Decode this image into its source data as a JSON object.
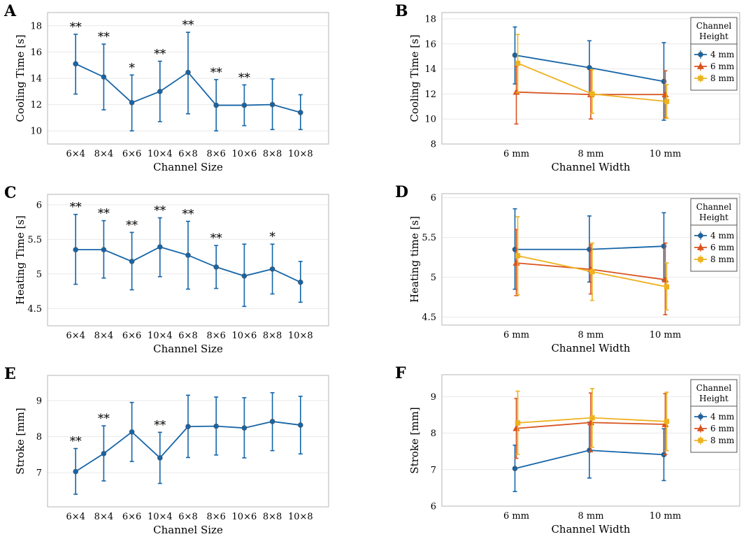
{
  "colors": {
    "blue": "#1565a8",
    "orange": "#d9531e",
    "yellow": "#eeb21f"
  },
  "chart_data": [
    {
      "panel": "A",
      "type": "line",
      "categories": [
        "6×4",
        "8×4",
        "6×6",
        "10×4",
        "6×8",
        "8×6",
        "10×6",
        "8×8",
        "10×8"
      ],
      "series": [
        {
          "name": "Cooling Time",
          "color": "#1565a8",
          "values": [
            15.1,
            14.1,
            12.15,
            13.0,
            14.45,
            11.95,
            11.95,
            12.0,
            11.4
          ],
          "lower": [
            12.8,
            11.6,
            10.0,
            10.7,
            11.3,
            10.0,
            10.4,
            10.1,
            10.1
          ],
          "upper": [
            17.35,
            16.6,
            14.25,
            15.3,
            17.5,
            13.9,
            13.5,
            13.95,
            12.75
          ]
        }
      ],
      "significance": [
        "**",
        "**",
        "*",
        "**",
        "**",
        "**",
        "**",
        "",
        ""
      ],
      "ylim": [
        9,
        19
      ],
      "yticks": [
        10,
        12,
        14,
        16,
        18
      ],
      "ytick_labels": [
        "10",
        "12",
        "14",
        "16",
        "18"
      ],
      "xlabel": "Channel Size",
      "ylabel": "Cooling Time [s]"
    },
    {
      "panel": "B",
      "type": "line",
      "categories": [
        "6 mm",
        "8 mm",
        "10 mm"
      ],
      "series": [
        {
          "name": "4 mm",
          "color": "#1565a8",
          "marker": "circle",
          "values": [
            15.1,
            14.1,
            13.0
          ],
          "lower": [
            12.8,
            11.95,
            9.9
          ],
          "upper": [
            17.35,
            16.25,
            16.1
          ]
        },
        {
          "name": "6 mm",
          "color": "#d9531e",
          "marker": "triangle",
          "values": [
            12.15,
            11.95,
            11.95
          ],
          "lower": [
            9.6,
            10.0,
            10.1
          ],
          "upper": [
            14.2,
            13.9,
            13.85
          ]
        },
        {
          "name": "8 mm",
          "color": "#eeb21f",
          "marker": "square",
          "values": [
            14.45,
            12.0,
            11.4
          ],
          "lower": [
            12.1,
            10.45,
            10.05
          ],
          "upper": [
            16.75,
            13.95,
            12.75
          ]
        }
      ],
      "ylim": [
        8,
        18.5
      ],
      "yticks": [
        8,
        10,
        12,
        14,
        16,
        18
      ],
      "ytick_labels": [
        "8",
        "10",
        "12",
        "14",
        "16",
        "18"
      ],
      "xlabel": "Channel Width",
      "ylabel": "Cooling Time [s]",
      "legend_title": [
        "Channel",
        "Height"
      ],
      "legend": "top-right"
    },
    {
      "panel": "C",
      "type": "line",
      "categories": [
        "6×4",
        "8×4",
        "6×6",
        "10×4",
        "6×8",
        "8×6",
        "10×6",
        "8×8",
        "10×8"
      ],
      "series": [
        {
          "name": "Heating Time",
          "color": "#1565a8",
          "values": [
            5.35,
            5.35,
            5.18,
            5.39,
            5.27,
            5.1,
            4.97,
            5.07,
            4.88
          ],
          "lower": [
            4.85,
            4.94,
            4.77,
            4.96,
            4.78,
            4.79,
            4.53,
            4.71,
            4.59
          ],
          "upper": [
            5.86,
            5.77,
            5.6,
            5.81,
            5.76,
            5.41,
            5.43,
            5.43,
            5.18
          ]
        }
      ],
      "significance": [
        "**",
        "**",
        "**",
        "**",
        "**",
        "**",
        "",
        "*",
        ""
      ],
      "ylim": [
        4.25,
        6.15
      ],
      "yticks": [
        4.5,
        5,
        5.5,
        6
      ],
      "ytick_labels": [
        "4.5",
        "5",
        "5.5",
        "6"
      ],
      "xlabel": "Channel Size",
      "ylabel": "Heating Time [s]"
    },
    {
      "panel": "D",
      "type": "line",
      "categories": [
        "6 mm",
        "8 mm",
        "10 mm"
      ],
      "series": [
        {
          "name": "4 mm",
          "color": "#1565a8",
          "marker": "circle",
          "values": [
            5.35,
            5.35,
            5.39
          ],
          "lower": [
            4.85,
            4.94,
            4.96
          ],
          "upper": [
            5.86,
            5.77,
            5.81
          ]
        },
        {
          "name": "6 mm",
          "color": "#d9531e",
          "marker": "triangle",
          "values": [
            5.18,
            5.1,
            4.97
          ],
          "lower": [
            4.77,
            4.79,
            4.53
          ],
          "upper": [
            5.6,
            5.41,
            5.43
          ]
        },
        {
          "name": "8 mm",
          "color": "#eeb21f",
          "marker": "square",
          "values": [
            5.27,
            5.07,
            4.88
          ],
          "lower": [
            4.78,
            4.71,
            4.59
          ],
          "upper": [
            5.76,
            5.43,
            5.18
          ]
        }
      ],
      "ylim": [
        4.4,
        6.05
      ],
      "yticks": [
        4.5,
        5,
        5.5,
        6
      ],
      "ytick_labels": [
        "4.5",
        "5",
        "5.5",
        "6"
      ],
      "xlabel": "Channel Width",
      "ylabel": "Heating time [s]",
      "legend_title": [
        "Channel",
        "Height"
      ],
      "legend": "top-right"
    },
    {
      "panel": "E",
      "type": "line",
      "categories": [
        "6×4",
        "8×4",
        "6×6",
        "10×4",
        "6×8",
        "8×6",
        "10×6",
        "8×8",
        "10×8"
      ],
      "series": [
        {
          "name": "Stroke",
          "color": "#1565a8",
          "values": [
            7.03,
            7.53,
            8.13,
            7.41,
            8.28,
            8.29,
            8.24,
            8.42,
            8.32
          ],
          "lower": [
            6.4,
            6.77,
            7.31,
            6.7,
            7.42,
            7.49,
            7.41,
            7.61,
            7.52
          ],
          "upper": [
            7.67,
            8.3,
            8.95,
            8.12,
            9.15,
            9.1,
            9.08,
            9.22,
            9.12
          ]
        }
      ],
      "significance": [
        "**",
        "**",
        "",
        "**",
        "",
        "",
        "",
        "",
        ""
      ],
      "ylim": [
        6.05,
        9.7
      ],
      "yticks": [
        7,
        8,
        9
      ],
      "ytick_labels": [
        "7",
        "8",
        "9"
      ],
      "xlabel": "Channel Size",
      "ylabel": "Stroke [mm]"
    },
    {
      "panel": "F",
      "type": "line",
      "categories": [
        "6 mm",
        "8 mm",
        "10 mm"
      ],
      "series": [
        {
          "name": "4 mm",
          "color": "#1565a8",
          "marker": "circle",
          "values": [
            7.03,
            7.53,
            7.41
          ],
          "lower": [
            6.4,
            6.77,
            6.7
          ],
          "upper": [
            7.67,
            8.3,
            8.12
          ]
        },
        {
          "name": "6 mm",
          "color": "#d9531e",
          "marker": "triangle",
          "values": [
            8.13,
            8.29,
            8.24
          ],
          "lower": [
            7.31,
            7.49,
            7.41
          ],
          "upper": [
            8.95,
            9.1,
            9.08
          ]
        },
        {
          "name": "8 mm",
          "color": "#eeb21f",
          "marker": "square",
          "values": [
            8.28,
            8.42,
            8.32
          ],
          "lower": [
            7.42,
            7.61,
            7.52
          ],
          "upper": [
            9.15,
            9.22,
            9.12
          ]
        }
      ],
      "ylim": [
        6,
        9.6
      ],
      "yticks": [
        6,
        7,
        8,
        9
      ],
      "ytick_labels": [
        "6",
        "7",
        "8",
        "9"
      ],
      "xlabel": "Channel Width",
      "ylabel": "Stroke [mm]",
      "legend_title": [
        "Channel",
        "Height"
      ],
      "legend": "top-right"
    }
  ]
}
